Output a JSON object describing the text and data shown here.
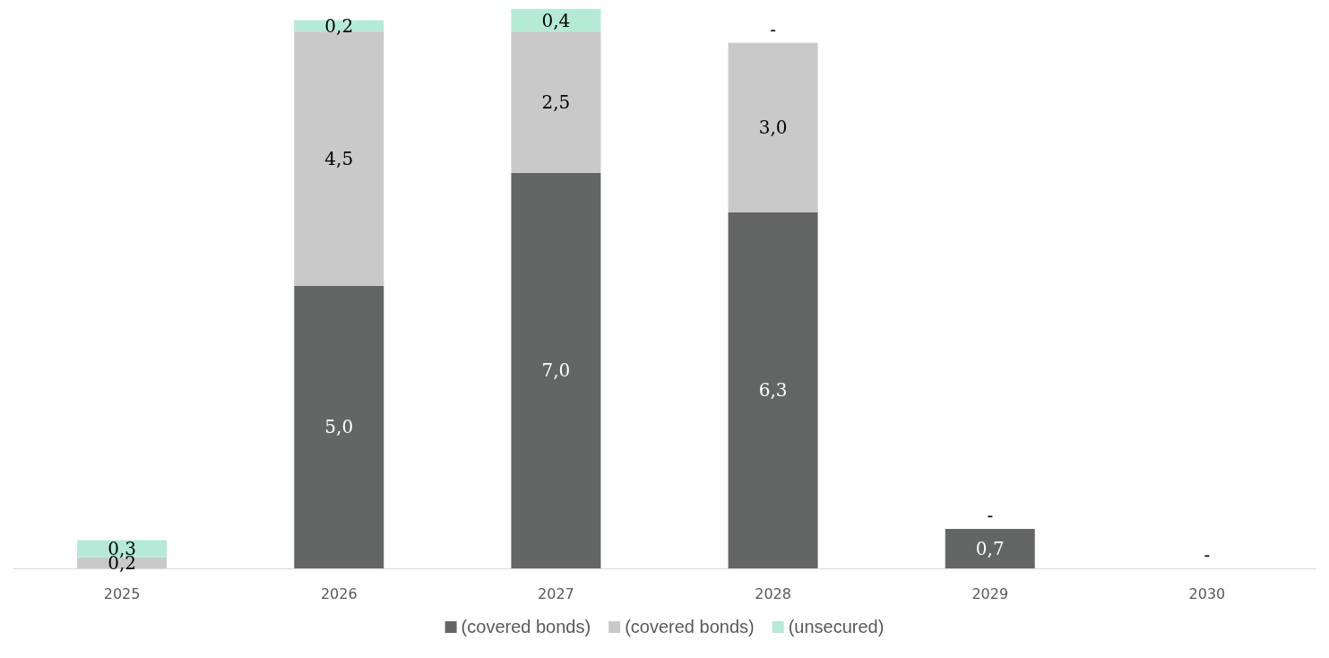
{
  "chart_data": {
    "type": "bar",
    "stacked": true,
    "legend": "bottom",
    "grid": false,
    "categories": [
      "2025",
      "2026",
      "2027",
      "2028",
      "2029",
      "2030"
    ],
    "series": [
      {
        "name": "(covered bonds)",
        "color": "#636664",
        "values": [
          0,
          5.0,
          7.0,
          6.3,
          0.7,
          0
        ],
        "value_labels": [
          null,
          "5,0",
          "7,0",
          "6,3",
          "0,7",
          "-"
        ]
      },
      {
        "name": "(covered bonds)",
        "color": "#c8c9c8",
        "values": [
          0.2,
          4.5,
          2.5,
          3.0,
          0,
          0
        ],
        "value_labels": [
          "0,2",
          "4,5",
          "2,5",
          "3,0",
          "-",
          null
        ]
      },
      {
        "name": "(unsecured)",
        "color": "#b5ead7",
        "values": [
          0.3,
          0.2,
          0.4,
          0,
          0,
          0
        ],
        "value_labels": [
          "0,3",
          "0,2",
          "0,4",
          "-",
          null,
          null
        ]
      }
    ]
  }
}
